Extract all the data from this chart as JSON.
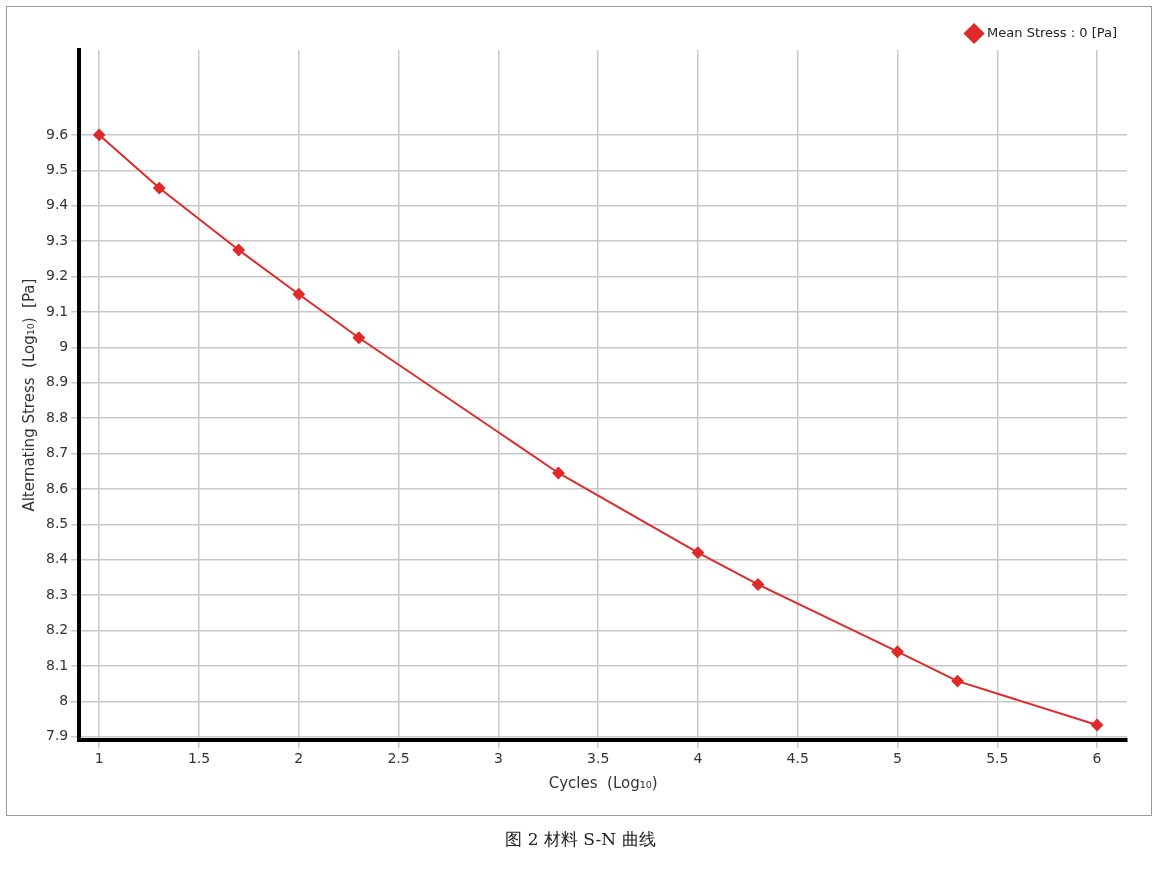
{
  "chart_data": {
    "type": "line",
    "xlabel": "Cycles  (Log₁₀)",
    "ylabel": "Alternating Stress  (Log₁₀)  [Pa]",
    "x": [
      1,
      1.301,
      1.699,
      2,
      2.301,
      3.301,
      4,
      4.301,
      5,
      5.301,
      6
    ],
    "series": [
      {
        "name": "Mean Stress : 0 [Pa]",
        "color": "#e02a2a",
        "values": [
          9.6,
          9.45,
          9.275,
          9.15,
          9.027,
          8.645,
          8.42,
          8.33,
          8.14,
          8.057,
          7.933
        ]
      }
    ],
    "xlim": [
      0.9,
      6.15
    ],
    "xticks": [
      1,
      1.5,
      2,
      2.5,
      3,
      3.5,
      4,
      4.5,
      5,
      5.5,
      6
    ],
    "ylim": [
      7.89,
      9.84
    ],
    "yticks": [
      7.9,
      8,
      8.1,
      8.2,
      8.3,
      8.4,
      8.5,
      8.6,
      8.7,
      8.8,
      8.9,
      9,
      9.1,
      9.2,
      9.3,
      9.4,
      9.5,
      9.6
    ],
    "grid": true,
    "legend": "top right",
    "marker": "diamond",
    "line_style": "solid",
    "annotations": [
      "图 2  材料 S-N 曲线"
    ]
  }
}
